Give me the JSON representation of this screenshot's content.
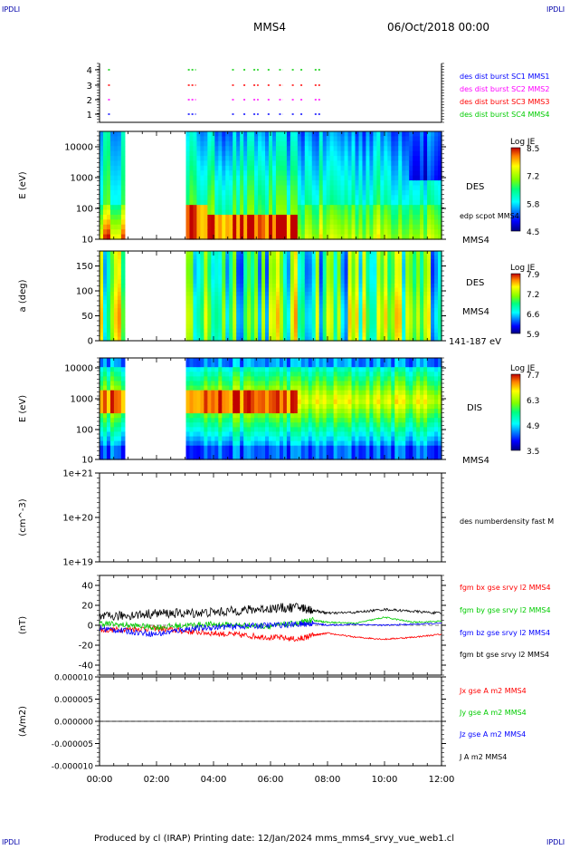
{
  "corner_labels": {
    "top_left": "IPDLI",
    "top_right": "IPDLI",
    "bottom_left": "IPDLI",
    "bottom_right": "IPDLI"
  },
  "header": {
    "mission": "MMS4",
    "datetime": "06/Oct/2018 00:00"
  },
  "footer": {
    "text": "Produced by cl (IRAP)   Printing date: 12/Jan/2024   mms_mms4_srvy_vue_web1.cl"
  },
  "colors": {
    "blue": "#0000ff",
    "magenta": "#ff00ff",
    "red": "#ff0000",
    "green": "#00cc00",
    "black": "#000000"
  },
  "chart_data": {
    "type": "multi-panel timeseries",
    "x": {
      "ticks": [
        "00:00",
        "02:00",
        "04:00",
        "06:00",
        "08:00",
        "10:00",
        "12:00"
      ],
      "range_hours": [
        0,
        12
      ]
    },
    "panels": [
      {
        "id": "burst",
        "type": "scatter",
        "y_ticks": [
          "1",
          "2",
          "3",
          "4"
        ],
        "legend": [
          {
            "label": "des dist burst SC1 MMS1",
            "color": "#0000ff"
          },
          {
            "label": "des dist burst SC2 MMS2",
            "color": "#ff00ff"
          },
          {
            "label": "des dist burst SC3 MMS3",
            "color": "#ff0000"
          },
          {
            "label": "des dist burst SC4 MMS4",
            "color": "#00cc00"
          }
        ],
        "intervals_hours": [
          [
            0.3,
            0.35
          ],
          [
            3.1,
            3.35
          ],
          [
            4.65,
            4.72
          ],
          [
            5.05,
            5.12
          ],
          [
            5.4,
            5.55
          ],
          [
            5.9,
            5.95
          ],
          [
            6.3,
            6.4
          ],
          [
            6.75,
            6.82
          ],
          [
            7.05,
            7.1
          ],
          [
            7.55,
            7.72
          ]
        ]
      },
      {
        "id": "des_energy",
        "type": "heatmap",
        "ylabel": "E (eV)",
        "y_ticks": [
          "10",
          "100",
          "1000",
          "10000"
        ],
        "y_scale": "log",
        "side_labels": [
          "DES",
          "edp scpot MMS4",
          "MMS4"
        ],
        "colorbar": {
          "title": "Log JE",
          "ticks": [
            "8.5",
            "7.2",
            "5.8",
            "4.5"
          ]
        },
        "data_gaps_hours": [
          [
            0.9,
            3.05
          ]
        ]
      },
      {
        "id": "des_pitch",
        "type": "heatmap",
        "ylabel": "a (deg)",
        "y_ticks": [
          "0",
          "50",
          "100",
          "150"
        ],
        "y_range": [
          0,
          180
        ],
        "side_labels": [
          "DES",
          "MMS4",
          "141-187 eV"
        ],
        "colorbar": {
          "title": "Log JE",
          "ticks": [
            "7.9",
            "7.2",
            "6.6",
            "5.9"
          ]
        },
        "data_gaps_hours": [
          [
            0.9,
            3.05
          ]
        ]
      },
      {
        "id": "dis_energy",
        "type": "heatmap",
        "ylabel": "E (eV)",
        "y_ticks": [
          "10",
          "100",
          "1000",
          "10000"
        ],
        "y_scale": "log",
        "side_labels": [
          "DIS",
          "MMS4"
        ],
        "colorbar": {
          "title": "Log JE",
          "ticks": [
            "7.7",
            "6.3",
            "4.9",
            "3.5"
          ]
        },
        "data_gaps_hours": [
          [
            0.9,
            3.05
          ]
        ]
      },
      {
        "id": "density",
        "type": "line",
        "ylabel": "(cm^-3)",
        "y_ticks": [
          "1e+19",
          "1e+20",
          "1e+21"
        ],
        "y_scale": "log",
        "legend": [
          {
            "label": "des numberdensity fast M",
            "color": "#000000"
          }
        ],
        "series": []
      },
      {
        "id": "fgm",
        "type": "line",
        "ylabel": "(nT)",
        "y_ticks": [
          "-40",
          "-20",
          "0",
          "20",
          "40"
        ],
        "y_range": [
          -50,
          50
        ],
        "legend": [
          {
            "label": "fgm bx gse srvy l2 MMS4",
            "color": "#ff0000"
          },
          {
            "label": "fgm by gse srvy l2 MMS4",
            "color": "#00cc00"
          },
          {
            "label": "fgm bz gse srvy l2 MMS4",
            "color": "#0000ff"
          },
          {
            "label": "fgm bt gse srvy l2 MMS4",
            "color": "#000000"
          }
        ],
        "series": [
          {
            "color": "#ff0000",
            "x": [
              0,
              1,
              2,
              3,
              4,
              5,
              6,
              7,
              7.5,
              8,
              9,
              10,
              11,
              12
            ],
            "y": [
              -5,
              -4,
              -3,
              -6,
              -8,
              -10,
              -12,
              -14,
              -10,
              -8,
              -12,
              -14,
              -12,
              -9
            ]
          },
          {
            "color": "#00cc00",
            "x": [
              0,
              1,
              2,
              3,
              4,
              5,
              6,
              7,
              7.5,
              8,
              9,
              10,
              11,
              12
            ],
            "y": [
              2,
              0,
              -2,
              0,
              1,
              0,
              -1,
              2,
              5,
              3,
              2,
              8,
              3,
              4
            ]
          },
          {
            "color": "#0000ff",
            "x": [
              0,
              1,
              2,
              3,
              4,
              5,
              6,
              7,
              7.5,
              8,
              9,
              10,
              11,
              12
            ],
            "y": [
              -3,
              -6,
              -9,
              -4,
              -2,
              -1,
              0,
              1,
              2,
              0,
              1,
              0,
              1,
              2
            ]
          },
          {
            "color": "#000000",
            "x": [
              0,
              1,
              2,
              3,
              4,
              5,
              6,
              7,
              7.5,
              8,
              9,
              10,
              11,
              12
            ],
            "y": [
              8,
              10,
              12,
              12,
              13,
              15,
              17,
              18,
              15,
              12,
              13,
              16,
              14,
              12
            ]
          }
        ]
      },
      {
        "id": "current",
        "type": "line",
        "ylabel": "(A/m2)",
        "y_ticks": [
          "-0.000010",
          "-0.000005",
          "0.000000",
          "0.000005",
          "0.000010"
        ],
        "y_range": [
          -1e-05,
          1e-05
        ],
        "legend": [
          {
            "label": "Jx gse A m2 MMS4",
            "color": "#ff0000"
          },
          {
            "label": "Jy gse A m2 MMS4",
            "color": "#00cc00"
          },
          {
            "label": "Jz gse A m2 MMS4",
            "color": "#0000ff"
          },
          {
            "label": "J A m2 MMS4",
            "color": "#000000"
          }
        ],
        "series": [
          {
            "color": "#000000",
            "x": [
              0,
              12
            ],
            "y": [
              0,
              0
            ]
          }
        ]
      }
    ]
  }
}
